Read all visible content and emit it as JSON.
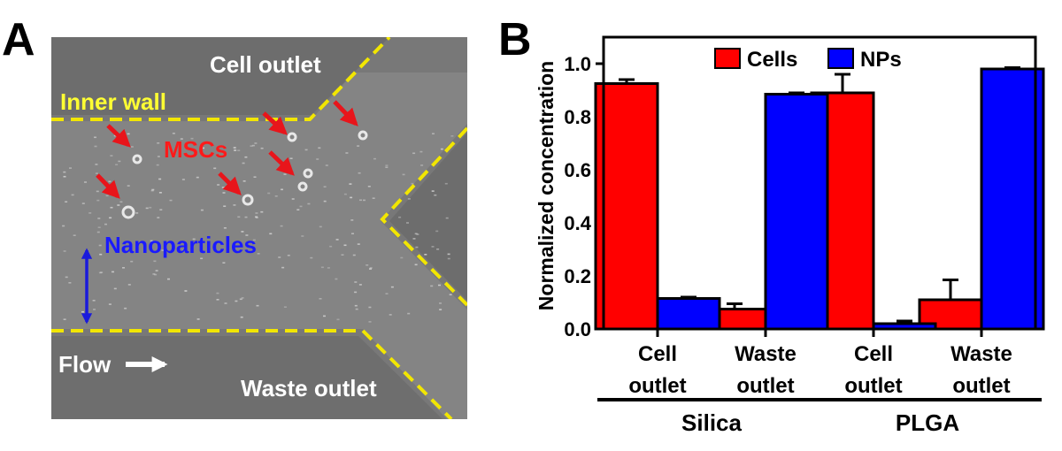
{
  "panel_a": {
    "label": "A",
    "labels": {
      "cell_outlet": "Cell outlet",
      "inner_wall": "Inner wall",
      "mscs": "MSCs",
      "nanoparticles": "Nanoparticles",
      "flow": "Flow",
      "waste_outlet": "Waste outlet"
    },
    "colors": {
      "wall_dash": "#f2e600",
      "arrow_red": "#e8151b",
      "arrow_blue": "#1a1adc",
      "text_yellow": "#ffff33",
      "text_red": "#ff1a1a",
      "text_blue": "#1a1aff",
      "text_white": "#ffffff"
    }
  },
  "panel_b": {
    "label": "B"
  },
  "chart_data": {
    "type": "bar",
    "ylabel": "Normalized concentration",
    "ylim": [
      0,
      1.1
    ],
    "yticks": [
      "0.0",
      "0.2",
      "0.4",
      "0.6",
      "0.8",
      "1.0"
    ],
    "categories": [
      "Cell outlet",
      "Waste outlet",
      "Cell outlet",
      "Waste outlet"
    ],
    "category_lines": [
      [
        "Cell",
        "outlet"
      ],
      [
        "Waste",
        "outlet"
      ],
      [
        "Cell",
        "outlet"
      ],
      [
        "Waste",
        "outlet"
      ]
    ],
    "groups": [
      {
        "name": "Silica",
        "categories": [
          0,
          1
        ]
      },
      {
        "name": "PLGA",
        "categories": [
          2,
          3
        ]
      }
    ],
    "series": [
      {
        "name": "Cells",
        "color": "#ff0000",
        "values": [
          0.925,
          0.075,
          0.89,
          0.11
        ],
        "errors": [
          0.015,
          0.02,
          0.07,
          0.075
        ]
      },
      {
        "name": "NPs",
        "color": "#0000ff",
        "values": [
          0.115,
          0.885,
          0.02,
          0.98
        ],
        "errors": [
          0.005,
          0.005,
          0.01,
          0.005
        ]
      }
    ],
    "legend_position": "top"
  }
}
